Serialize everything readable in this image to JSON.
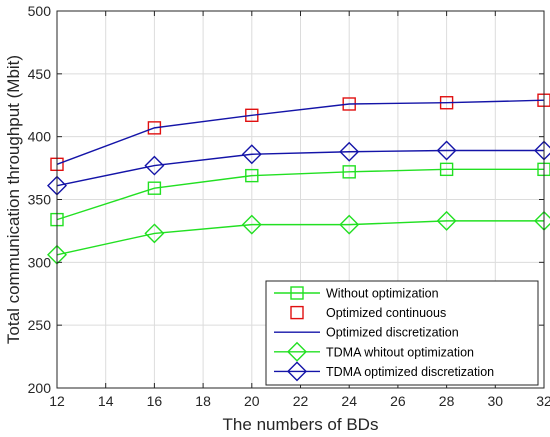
{
  "chart_data": {
    "type": "line",
    "title": "",
    "xlabel": "The numbers of BDs",
    "ylabel": "Total communication throughput (Mbit)",
    "x": [
      12,
      16,
      20,
      24,
      28,
      32
    ],
    "xlim": [
      12,
      32
    ],
    "ylim": [
      200,
      500
    ],
    "xticks": [
      "12",
      "14",
      "16",
      "18",
      "20",
      "22",
      "24",
      "26",
      "28",
      "30",
      "32"
    ],
    "yticks": [
      "200",
      "250",
      "300",
      "350",
      "400",
      "450",
      "500"
    ],
    "grid": true,
    "legend_position": "bottom-right",
    "series": [
      {
        "name": "Without optimization",
        "values": [
          334,
          359,
          369,
          372,
          374,
          374
        ],
        "color": "#22e022",
        "marker": "square",
        "line": true
      },
      {
        "name": "Optimized continuous",
        "values": [
          378,
          407,
          417,
          426,
          427,
          429
        ],
        "color": "#e01010",
        "marker": "square",
        "line": false
      },
      {
        "name": "Optimized discretization",
        "values": [
          378,
          407,
          417,
          426,
          427,
          429
        ],
        "color": "#1414a8",
        "marker": "none",
        "line": true
      },
      {
        "name": "TDMA whitout optimization",
        "values": [
          306,
          323,
          330,
          330,
          333,
          333
        ],
        "color": "#22e022",
        "marker": "diamond",
        "line": true
      },
      {
        "name": "TDMA optimized discretization",
        "values": [
          361,
          377,
          386,
          388,
          389,
          389
        ],
        "color": "#1414a8",
        "marker": "diamond",
        "line": true
      }
    ]
  }
}
